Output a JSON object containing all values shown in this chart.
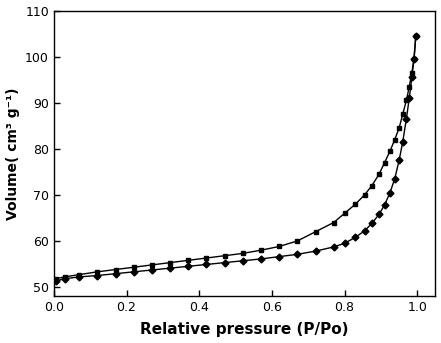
{
  "title": "",
  "xlabel": "Relative pressure (P/Po)",
  "ylabel": "Volume( cm³ g⁻¹)",
  "xlim": [
    0.0,
    1.05
  ],
  "ylim": [
    48,
    110
  ],
  "xticks": [
    0.0,
    0.2,
    0.4,
    0.6,
    0.8,
    1.0
  ],
  "yticks": [
    50,
    60,
    70,
    80,
    90,
    100,
    110
  ],
  "adsorption_x": [
    0.005,
    0.03,
    0.07,
    0.12,
    0.17,
    0.22,
    0.27,
    0.32,
    0.37,
    0.42,
    0.47,
    0.52,
    0.57,
    0.62,
    0.67,
    0.72,
    0.77,
    0.8,
    0.83,
    0.855,
    0.875,
    0.895,
    0.91,
    0.925,
    0.938,
    0.95,
    0.96,
    0.97,
    0.978,
    0.985,
    0.991,
    0.996
  ],
  "adsorption_y": [
    51.3,
    51.8,
    52.2,
    52.5,
    52.9,
    53.3,
    53.7,
    54.1,
    54.5,
    54.9,
    55.3,
    55.7,
    56.1,
    56.6,
    57.1,
    57.8,
    58.7,
    59.5,
    60.8,
    62.2,
    63.8,
    65.8,
    67.8,
    70.5,
    73.5,
    77.5,
    81.5,
    86.5,
    91.0,
    95.5,
    99.5,
    104.5
  ],
  "desorption_x": [
    0.996,
    0.991,
    0.985,
    0.978,
    0.97,
    0.96,
    0.95,
    0.938,
    0.925,
    0.91,
    0.895,
    0.875,
    0.855,
    0.83,
    0.8,
    0.77,
    0.72,
    0.67,
    0.62,
    0.57,
    0.52,
    0.47,
    0.42,
    0.37,
    0.32,
    0.27,
    0.22,
    0.17,
    0.12,
    0.07,
    0.03,
    0.005
  ],
  "desorption_y": [
    104.5,
    99.5,
    96.5,
    93.5,
    90.5,
    87.5,
    84.5,
    82.0,
    79.5,
    77.0,
    74.5,
    72.0,
    70.0,
    68.0,
    66.0,
    64.0,
    62.0,
    60.0,
    58.8,
    58.0,
    57.3,
    56.8,
    56.3,
    55.8,
    55.3,
    54.8,
    54.3,
    53.8,
    53.3,
    52.7,
    52.2,
    51.8
  ],
  "line_color": "#000000",
  "marker_adsorption": "D",
  "marker_desorption": "s",
  "marker_size_ads": 3.5,
  "marker_size_des": 3.5,
  "linewidth": 1.0,
  "background_color": "#ffffff"
}
